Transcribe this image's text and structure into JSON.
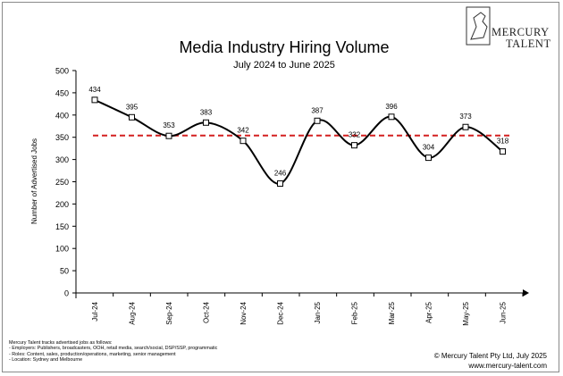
{
  "chart_data": {
    "type": "line",
    "title": "Media Industry Hiring Volume",
    "subtitle": "July 2024 to June 2025",
    "ylabel": "Number of Advertised Jobs",
    "xlabel": "",
    "ylim": [
      0,
      500
    ],
    "yticks": [
      0,
      50,
      100,
      150,
      200,
      250,
      300,
      350,
      400,
      450,
      500
    ],
    "categories": [
      "Jul-24",
      "Aug-24",
      "Sep-24",
      "Oct-24",
      "Nov-24",
      "Dec-24",
      "Jan-25",
      "Feb-25",
      "Mar-25",
      "Apr-25",
      "May-25",
      "Jun-25"
    ],
    "values": [
      434,
      395,
      353,
      383,
      342,
      246,
      387,
      332,
      396,
      304,
      373,
      318
    ],
    "average_line": 354,
    "grid": false,
    "legend": "none",
    "colors": {
      "line": "#000000",
      "average": "#d42020"
    }
  },
  "logo": {
    "line1": "MERCURY",
    "line2": "TALENT"
  },
  "notes": {
    "intro": "Mercury Talent tracks advertised jobs as follows:",
    "items": [
      "- Employers: Publishers, broadcasters, OOH, retail media, search/social, DSP/SSP, programmatic",
      "- Roles: Content, sales, production/operations, marketing, senior management",
      "- Location: Sydney and Melbourne"
    ]
  },
  "copyright": "© Mercury Talent Pty Ltd, July 2025",
  "website": "www.mercury-talent.com"
}
